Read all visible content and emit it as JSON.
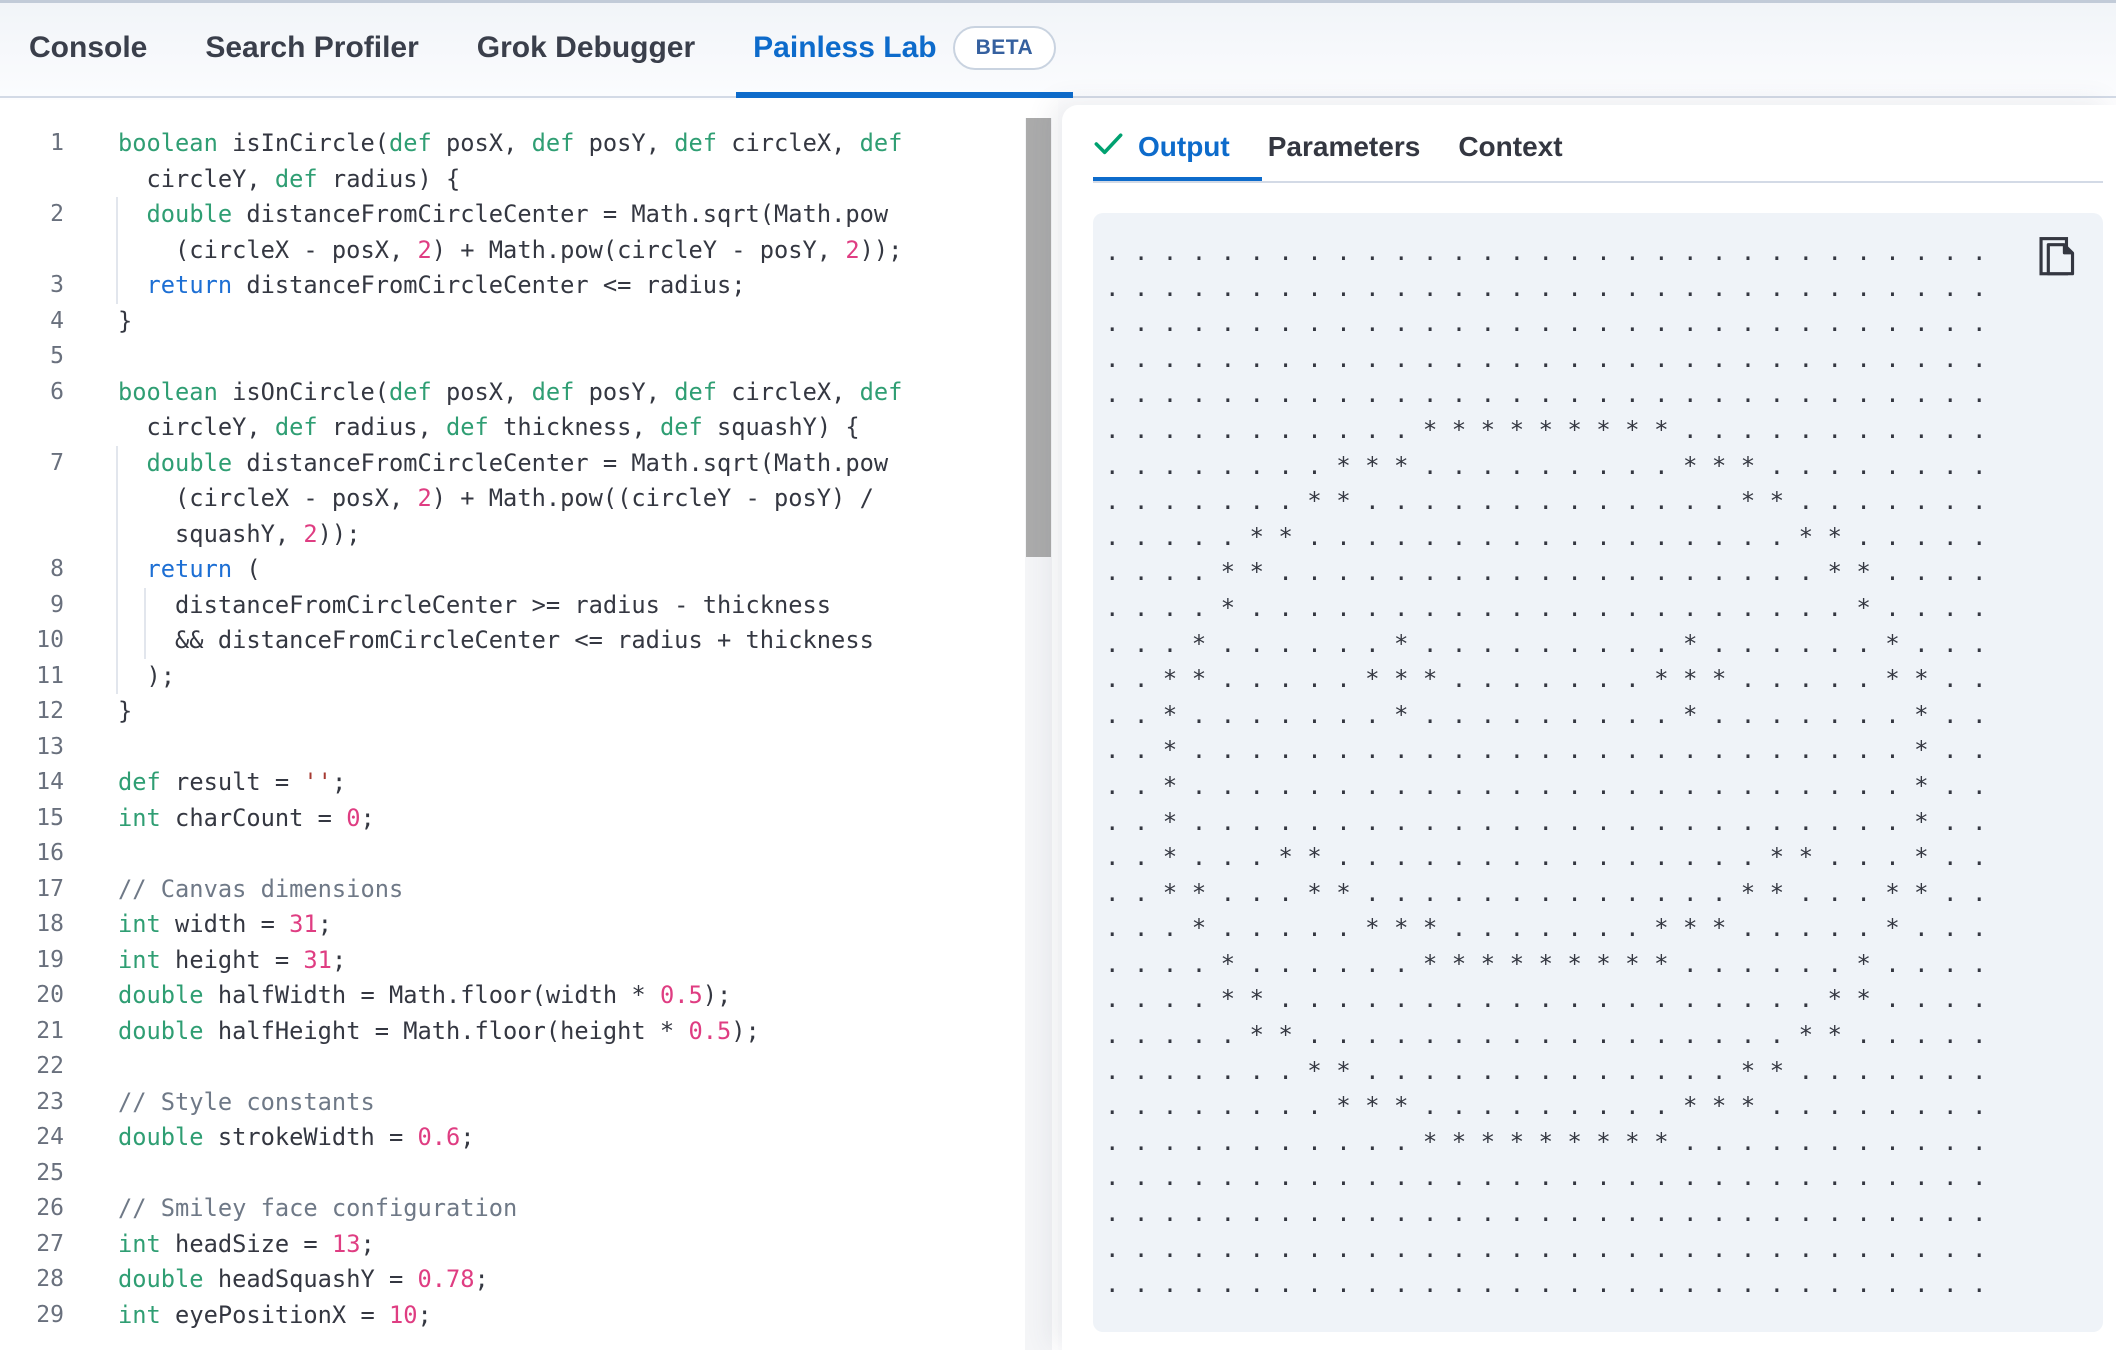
{
  "colors": {
    "accent": "#0d6bcb",
    "divider": "#d3dae6",
    "ink": "#343741",
    "kw-green": "#2f9e73",
    "kw-blue": "#1d6fd4",
    "num-pink": "#df3d82",
    "str-red": "#a63a32",
    "comment-gray": "#6f7987",
    "result-bg": "#eff3f8",
    "success-green": "#00a170",
    "scrollbar-thumb": "#ababab"
  },
  "header": {
    "beta_label": "BETA",
    "tabs": [
      {
        "label": "Console"
      },
      {
        "label": "Search Profiler"
      },
      {
        "label": "Grok Debugger"
      },
      {
        "label": "Painless Lab",
        "active": true,
        "beta": true
      }
    ]
  },
  "editor": {
    "rows": [
      {
        "n": "1",
        "s": [
          [
            "k",
            "boolean"
          ],
          [
            "p",
            " isInCircle("
          ],
          [
            "k",
            "def"
          ],
          [
            "p",
            " posX, "
          ],
          [
            "k",
            "def"
          ],
          [
            "p",
            " posY, "
          ],
          [
            "k",
            "def"
          ],
          [
            "p",
            " circleX, "
          ],
          [
            "k",
            "def"
          ]
        ]
      },
      {
        "n": "",
        "s": [
          [
            "p",
            "  circleY, "
          ],
          [
            "k",
            "def"
          ],
          [
            "p",
            " radius) {"
          ]
        ]
      },
      {
        "n": "2",
        "g": [
          0
        ],
        "s": [
          [
            "p",
            "  "
          ],
          [
            "k",
            "double"
          ],
          [
            "p",
            " distanceFromCircleCenter = Math.sqrt(Math.pow"
          ]
        ]
      },
      {
        "n": "",
        "g": [
          0
        ],
        "s": [
          [
            "p",
            "    (circleX - posX, "
          ],
          [
            "n",
            "2"
          ],
          [
            "p",
            ") + Math.pow(circleY - posY, "
          ],
          [
            "n",
            "2"
          ],
          [
            "p",
            "));"
          ]
        ]
      },
      {
        "n": "3",
        "g": [
          0
        ],
        "s": [
          [
            "p",
            "  "
          ],
          [
            "r",
            "return"
          ],
          [
            "p",
            " distanceFromCircleCenter <= radius;"
          ]
        ]
      },
      {
        "n": "4",
        "s": [
          [
            "p",
            "}"
          ]
        ]
      },
      {
        "n": "5",
        "s": []
      },
      {
        "n": "6",
        "s": [
          [
            "k",
            "boolean"
          ],
          [
            "p",
            " isOnCircle("
          ],
          [
            "k",
            "def"
          ],
          [
            "p",
            " posX, "
          ],
          [
            "k",
            "def"
          ],
          [
            "p",
            " posY, "
          ],
          [
            "k",
            "def"
          ],
          [
            "p",
            " circleX, "
          ],
          [
            "k",
            "def"
          ]
        ]
      },
      {
        "n": "",
        "s": [
          [
            "p",
            "  circleY, "
          ],
          [
            "k",
            "def"
          ],
          [
            "p",
            " radius, "
          ],
          [
            "k",
            "def"
          ],
          [
            "p",
            " thickness, "
          ],
          [
            "k",
            "def"
          ],
          [
            "p",
            " squashY) {"
          ]
        ]
      },
      {
        "n": "7",
        "g": [
          0
        ],
        "s": [
          [
            "p",
            "  "
          ],
          [
            "k",
            "double"
          ],
          [
            "p",
            " distanceFromCircleCenter = Math.sqrt(Math.pow"
          ]
        ]
      },
      {
        "n": "",
        "g": [
          0
        ],
        "s": [
          [
            "p",
            "    (circleX - posX, "
          ],
          [
            "n",
            "2"
          ],
          [
            "p",
            ") + Math.pow((circleY - posY) /"
          ]
        ]
      },
      {
        "n": "",
        "g": [
          0
        ],
        "s": [
          [
            "p",
            "    squashY, "
          ],
          [
            "n",
            "2"
          ],
          [
            "p",
            "));"
          ]
        ]
      },
      {
        "n": "8",
        "g": [
          0
        ],
        "s": [
          [
            "p",
            "  "
          ],
          [
            "r",
            "return"
          ],
          [
            "p",
            " ("
          ]
        ]
      },
      {
        "n": "9",
        "g": [
          0,
          2
        ],
        "s": [
          [
            "p",
            "    distanceFromCircleCenter >= radius - thickness"
          ]
        ]
      },
      {
        "n": "10",
        "g": [
          0,
          2
        ],
        "s": [
          [
            "p",
            "    && distanceFromCircleCenter <= radius + thickness"
          ]
        ]
      },
      {
        "n": "11",
        "g": [
          0
        ],
        "s": [
          [
            "p",
            "  );"
          ]
        ]
      },
      {
        "n": "12",
        "s": [
          [
            "p",
            "}"
          ]
        ]
      },
      {
        "n": "13",
        "s": []
      },
      {
        "n": "14",
        "s": [
          [
            "k",
            "def"
          ],
          [
            "p",
            " result = "
          ],
          [
            "s",
            "''"
          ],
          [
            "p",
            ";"
          ]
        ]
      },
      {
        "n": "15",
        "s": [
          [
            "k",
            "int"
          ],
          [
            "p",
            " charCount = "
          ],
          [
            "n",
            "0"
          ],
          [
            "p",
            ";"
          ]
        ]
      },
      {
        "n": "16",
        "s": []
      },
      {
        "n": "17",
        "s": [
          [
            "c",
            "// Canvas dimensions"
          ]
        ]
      },
      {
        "n": "18",
        "s": [
          [
            "k",
            "int"
          ],
          [
            "p",
            " width = "
          ],
          [
            "n",
            "31"
          ],
          [
            "p",
            ";"
          ]
        ]
      },
      {
        "n": "19",
        "s": [
          [
            "k",
            "int"
          ],
          [
            "p",
            " height = "
          ],
          [
            "n",
            "31"
          ],
          [
            "p",
            ";"
          ]
        ]
      },
      {
        "n": "20",
        "s": [
          [
            "k",
            "double"
          ],
          [
            "p",
            " halfWidth = Math.floor(width * "
          ],
          [
            "n",
            "0.5"
          ],
          [
            "p",
            ");"
          ]
        ]
      },
      {
        "n": "21",
        "s": [
          [
            "k",
            "double"
          ],
          [
            "p",
            " halfHeight = Math.floor(height * "
          ],
          [
            "n",
            "0.5"
          ],
          [
            "p",
            ");"
          ]
        ]
      },
      {
        "n": "22",
        "s": []
      },
      {
        "n": "23",
        "s": [
          [
            "c",
            "// Style constants"
          ]
        ]
      },
      {
        "n": "24",
        "s": [
          [
            "k",
            "double"
          ],
          [
            "p",
            " strokeWidth = "
          ],
          [
            "n",
            "0.6"
          ],
          [
            "p",
            ";"
          ]
        ]
      },
      {
        "n": "25",
        "s": []
      },
      {
        "n": "26",
        "s": [
          [
            "c",
            "// Smiley face configuration"
          ]
        ]
      },
      {
        "n": "27",
        "s": [
          [
            "k",
            "int"
          ],
          [
            "p",
            " headSize = "
          ],
          [
            "n",
            "13"
          ],
          [
            "p",
            ";"
          ]
        ]
      },
      {
        "n": "28",
        "s": [
          [
            "k",
            "double"
          ],
          [
            "p",
            " headSquashY = "
          ],
          [
            "n",
            "0.78"
          ],
          [
            "p",
            ";"
          ]
        ]
      },
      {
        "n": "29",
        "s": [
          [
            "k",
            "int"
          ],
          [
            "p",
            " eyePositionX = "
          ],
          [
            "n",
            "10"
          ],
          [
            "p",
            ";"
          ]
        ]
      }
    ]
  },
  "output": {
    "tabs": [
      {
        "label": "Output",
        "active": true,
        "icon": "check"
      },
      {
        "label": "Parameters"
      },
      {
        "label": "Context"
      }
    ],
    "copy_icon": "copy",
    "art_rows": [
      "...............................",
      "...............................",
      "...............................",
      "...............................",
      "...............................",
      "...........*********...........",
      "........***.........***........",
      ".......**.............**.......",
      ".....**.................**.....",
      "....**...................**....",
      "....*.....................*....",
      "...*......*.........*......*...",
      "..**.....***.......***.....**..",
      "..*.......*.........*.......*..",
      "..*.........................*..",
      "..*.........................*..",
      "..*.........................*..",
      "..*...**...............**...*..",
      "..**...**.............**...**..",
      "...*.....***.......***.....*...",
      "....*......*********......*....",
      "....**...................**....",
      ".....**.................**.....",
      ".......**.............**.......",
      "........***.........***........",
      "...........*********...........",
      "...............................",
      "...............................",
      "...............................",
      "..............................."
    ]
  }
}
